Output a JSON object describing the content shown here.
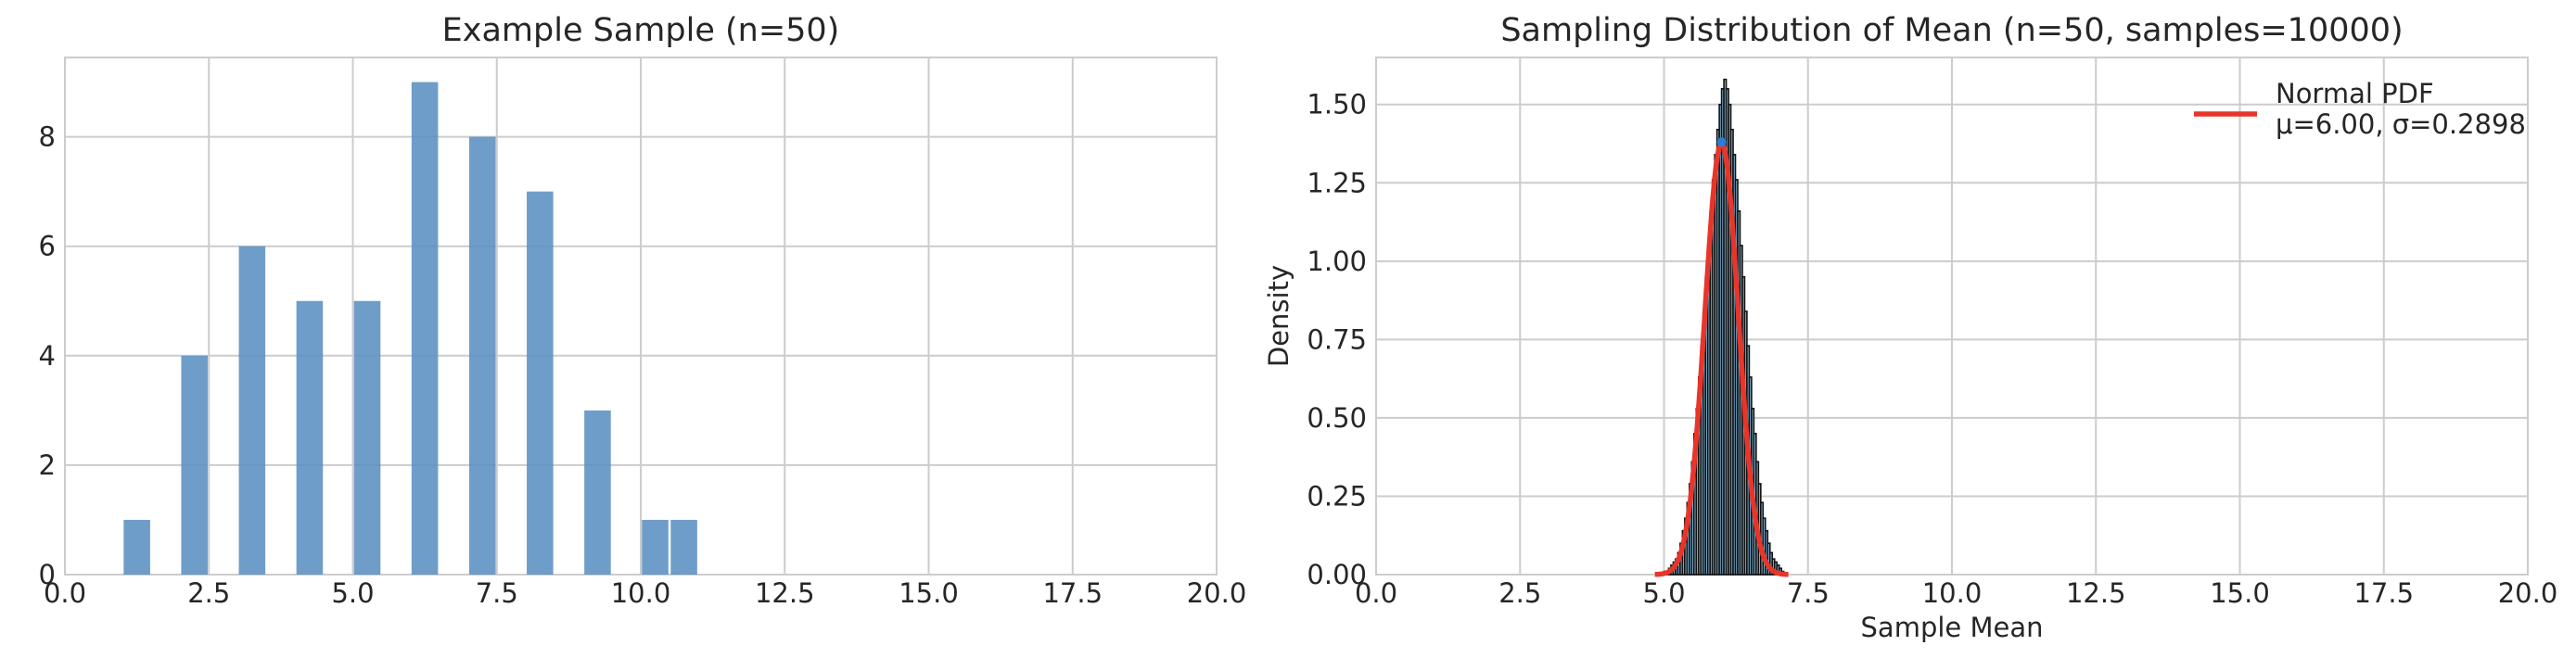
{
  "chart_data": [
    {
      "type": "bar",
      "title": "Example Sample (n=50)",
      "xlabel": "",
      "ylabel": "",
      "xlim": [
        0,
        20
      ],
      "ylim": [
        0,
        9.45
      ],
      "x_ticks": [
        "0.0",
        "2.5",
        "5.0",
        "7.5",
        "10.0",
        "12.5",
        "15.0",
        "17.5",
        "20.0"
      ],
      "y_ticks": [
        "0",
        "2",
        "4",
        "6",
        "8"
      ],
      "grid": true,
      "bar_color": "#5b8fc1",
      "bars": [
        {
          "x": 1.25,
          "value": 1
        },
        {
          "x": 2.25,
          "value": 4
        },
        {
          "x": 3.25,
          "value": 6
        },
        {
          "x": 4.25,
          "value": 5
        },
        {
          "x": 5.25,
          "value": 5
        },
        {
          "x": 6.25,
          "value": 9
        },
        {
          "x": 7.25,
          "value": 8
        },
        {
          "x": 8.25,
          "value": 7
        },
        {
          "x": 9.25,
          "value": 3
        },
        {
          "x": 10.25,
          "value": 1
        },
        {
          "x": 10.75,
          "value": 1
        }
      ],
      "bar_width": 0.5
    },
    {
      "type": "histogram+line",
      "title": "Sampling Distribution of Mean (n=50, samples=10000)",
      "xlabel": "Sample Mean",
      "ylabel": "Density",
      "xlim": [
        0,
        20
      ],
      "ylim": [
        0,
        1.65
      ],
      "x_ticks": [
        "0.0",
        "2.5",
        "5.0",
        "7.5",
        "10.0",
        "12.5",
        "15.0",
        "17.5",
        "20.0"
      ],
      "y_ticks": [
        "0.00",
        "0.25",
        "0.50",
        "0.75",
        "1.00",
        "1.25",
        "1.50"
      ],
      "grid": true,
      "legend_position": "top-right",
      "histogram": {
        "color": "#8fc3e6",
        "edge_color": "#111111",
        "bin_start": 5.0,
        "bin_width": 0.04,
        "densities": [
          0.01,
          0.01,
          0.02,
          0.03,
          0.04,
          0.05,
          0.07,
          0.1,
          0.14,
          0.18,
          0.23,
          0.29,
          0.36,
          0.45,
          0.53,
          0.63,
          0.73,
          0.84,
          0.95,
          1.05,
          1.16,
          1.26,
          1.34,
          1.42,
          1.5,
          1.55,
          1.58,
          1.55,
          1.5,
          1.42,
          1.34,
          1.26,
          1.16,
          1.05,
          0.95,
          0.84,
          0.73,
          0.63,
          0.53,
          0.45,
          0.36,
          0.29,
          0.23,
          0.18,
          0.14,
          0.1,
          0.07,
          0.05,
          0.04,
          0.03,
          0.02,
          0.01
        ]
      },
      "pdf": {
        "name": "Normal PDF",
        "label_line2": "μ=6.00, σ=0.2898",
        "mu": 6.0,
        "sigma": 0.2898,
        "color": "#e8352a"
      },
      "mean_marker": {
        "x": 6.0,
        "y": 1.38,
        "color": "#2a7fd4"
      }
    }
  ]
}
